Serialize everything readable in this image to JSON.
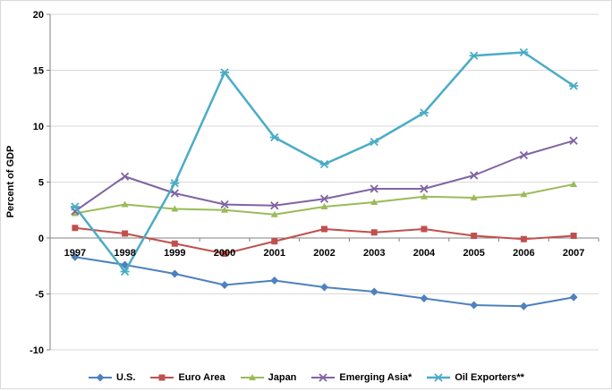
{
  "chart": {
    "y_axis_title": "Percent of GDP"
  },
  "chart_data": {
    "type": "line",
    "title": "",
    "xlabel": "",
    "ylabel": "Percent of GDP",
    "ylim": [
      -10,
      20
    ],
    "ytick_step": 5,
    "grid": true,
    "legend_position": "bottom",
    "categories": [
      "1997",
      "1998",
      "1999",
      "2000",
      "2001",
      "2002",
      "2003",
      "2004",
      "2005",
      "2006",
      "2007"
    ],
    "series": [
      {
        "name": "U.S.",
        "color": "#4F81BD",
        "marker": "diamond",
        "line_width": 2,
        "values": [
          -1.7,
          -2.4,
          -3.2,
          -4.2,
          -3.8,
          -4.4,
          -4.8,
          -5.4,
          -6.0,
          -6.1,
          -5.3
        ]
      },
      {
        "name": "Euro Area",
        "color": "#C0504D",
        "marker": "square",
        "line_width": 2,
        "values": [
          0.9,
          0.4,
          -0.5,
          -1.4,
          -0.3,
          0.8,
          0.5,
          0.8,
          0.2,
          -0.1,
          0.2
        ]
      },
      {
        "name": "Japan",
        "color": "#9BBB59",
        "marker": "triangle",
        "line_width": 2,
        "values": [
          2.2,
          3.0,
          2.6,
          2.5,
          2.1,
          2.8,
          3.2,
          3.7,
          3.6,
          3.9,
          4.8
        ]
      },
      {
        "name": "Emerging Asia*",
        "color": "#8064A2",
        "marker": "x",
        "line_width": 2,
        "values": [
          2.4,
          5.5,
          4.0,
          3.0,
          2.9,
          3.5,
          4.4,
          4.4,
          5.6,
          7.4,
          8.7
        ]
      },
      {
        "name": "Oil Exporters**",
        "color": "#4BACC6",
        "marker": "asterisk",
        "line_width": 2.5,
        "values": [
          2.8,
          -3.0,
          4.9,
          14.8,
          9.0,
          6.6,
          8.6,
          11.2,
          16.3,
          16.6,
          13.6
        ]
      }
    ]
  }
}
